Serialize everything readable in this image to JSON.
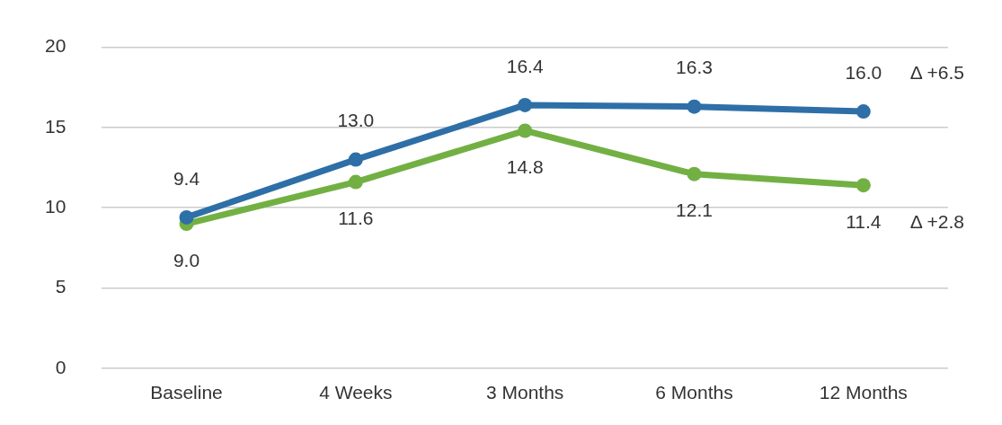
{
  "chart_data": {
    "type": "line",
    "categories": [
      "Baseline",
      "4 Weeks",
      "3 Months",
      "6 Months",
      "12 Months"
    ],
    "series": [
      {
        "color": "#2e6fa7",
        "values": [
          9.4,
          13.0,
          16.4,
          16.3,
          16.0
        ],
        "value_labels": [
          "9.4",
          "13.0",
          "16.4",
          "16.3",
          "16.0"
        ]
      },
      {
        "color": "#72b043",
        "values": [
          9.0,
          11.6,
          14.8,
          12.1,
          11.4
        ],
        "value_labels": [
          "9.0",
          "11.6",
          "14.8",
          "12.1",
          "11.4"
        ]
      }
    ],
    "ylim": [
      0,
      20
    ],
    "yticks": [
      0,
      5,
      10,
      15,
      20
    ],
    "grid": "y",
    "legend": false,
    "marker": "circle",
    "line_style": "solid",
    "annotations": [
      "Δ +6.5",
      "Δ +2.8"
    ]
  }
}
